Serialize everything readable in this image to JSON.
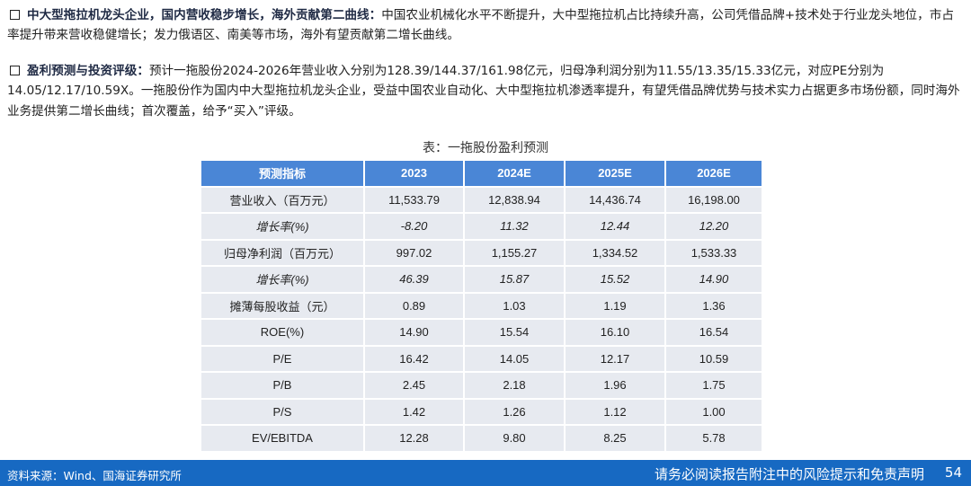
{
  "para1": {
    "lead": "中大型拖拉机龙头企业，国内营收稳步增长，海外贡献第二曲线：",
    "body": "中国农业机械化水平不断提升，大中型拖拉机占比持续升高，公司凭借品牌+技术处于行业龙头地位，市占率提升带来营收稳健增长；发力俄语区、南美等市场，海外有望贡献第二增长曲线。"
  },
  "para2": {
    "lead": "盈利预测与投资评级：",
    "body": "预计一拖股份2024-2026年营业收入分别为128.39/144.37/161.98亿元，归母净利润分别为11.55/13.35/15.33亿元，对应PE分别为14.05/12.17/10.59X。一拖股份作为国内中大型拖拉机龙头企业，受益中国农业自动化、大中型拖拉机渗透率提升，有望凭借品牌优势与技术实力占据更多市场份额，同时海外业务提供第二增长曲线；首次覆盖，给予“买入”评级。"
  },
  "table": {
    "caption": "表：一拖股份盈利预测",
    "headers": [
      "预测指标",
      "2023",
      "2024E",
      "2025E",
      "2026E"
    ],
    "rows": [
      [
        "营业收入（百万元）",
        "11,533.79",
        "12,838.94",
        "14,436.74",
        "16,198.00"
      ],
      [
        "增长率(%)",
        "-8.20",
        "11.32",
        "12.44",
        "12.20"
      ],
      [
        "归母净利润（百万元）",
        "997.02",
        "1,155.27",
        "1,334.52",
        "1,533.33"
      ],
      [
        "增长率(%)",
        "46.39",
        "15.87",
        "15.52",
        "14.90"
      ],
      [
        "摊薄每股收益（元）",
        "0.89",
        "1.03",
        "1.19",
        "1.36"
      ],
      [
        "ROE(%)",
        "14.90",
        "15.54",
        "16.10",
        "16.54"
      ],
      [
        "P/E",
        "16.42",
        "14.05",
        "12.17",
        "10.59"
      ],
      [
        "P/B",
        "2.45",
        "2.18",
        "1.96",
        "1.75"
      ],
      [
        "P/S",
        "1.42",
        "1.26",
        "1.12",
        "1.00"
      ],
      [
        "EV/EBITDA",
        "12.28",
        "9.80",
        "8.25",
        "5.78"
      ]
    ]
  },
  "footer": {
    "source": "资料来源：Wind、国海证券研究所",
    "disclaimer": "请务必阅读报告附注中的风险提示和免责声明",
    "page": "54"
  },
  "colors": {
    "header_blue": "#4a86d6",
    "footer_blue": "#1769c2",
    "cell_gray": "#e7eaf0"
  }
}
